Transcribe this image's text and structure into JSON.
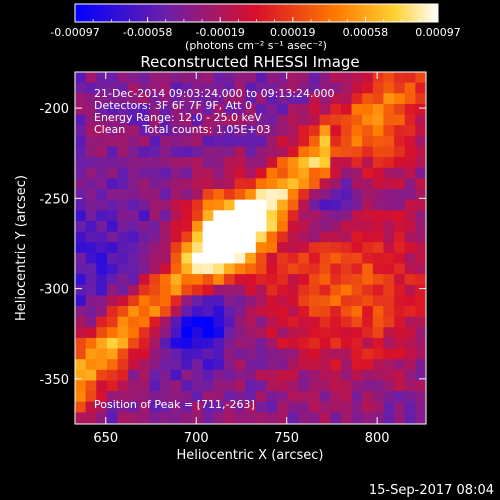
{
  "colorbar": {
    "tick_labels": [
      "-0.00097",
      "-0.00058",
      "-0.00019",
      "0.00019",
      "0.00058",
      "0.00097"
    ],
    "unit_label": "(photons cm⁻² s⁻¹ asec⁻²)",
    "range": [
      -0.00097,
      0.00097
    ]
  },
  "chart_data": {
    "type": "heatmap",
    "title": "Reconstructed RHESSI Image",
    "xlabel": "Heliocentric X (arcsec)",
    "ylabel": "Heliocentric Y (arcsec)",
    "xlim": [
      633,
      827
    ],
    "ylim": [
      -375,
      -180
    ],
    "x_ticks": [
      650,
      700,
      750,
      800
    ],
    "y_ticks": [
      -200,
      -250,
      -300,
      -350
    ],
    "annotations": [
      "21-Dec-2014 09:03:24.000 to 09:13:24.000",
      "Detectors: 3F 6F 7F 9F, Att 0",
      "Energy Range: 12.0 - 25.0 keV",
      "Clean     Total counts: 1.05E+03"
    ],
    "peak_label": "Position of Peak = [711,-263]",
    "peak_position": [
      711,
      -263
    ],
    "total_counts": 1050,
    "energy_range_kev": [
      12.0,
      25.0
    ],
    "colormap": [
      "#0000ff",
      "#7a1fa2",
      "#ff0000",
      "#ffa000",
      "#ffffff"
    ]
  },
  "footer": {
    "date": "15-Sep-2017 08:04"
  }
}
